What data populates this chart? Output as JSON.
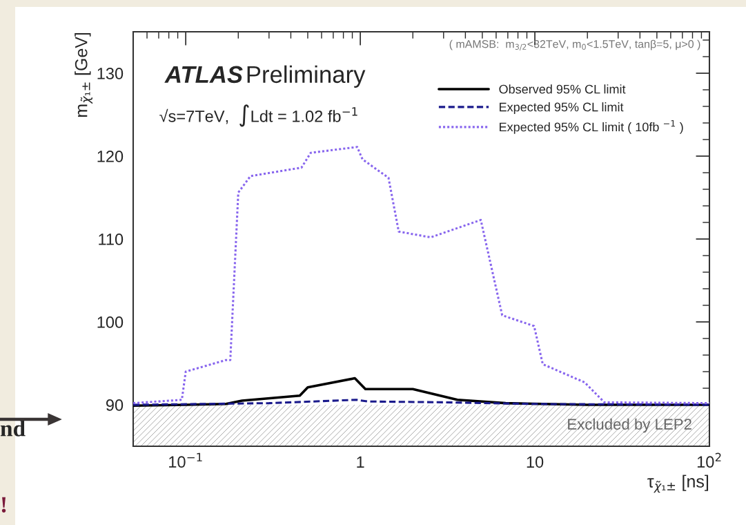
{
  "chart_data": {
    "type": "line",
    "xlabel": "τ$_{χ̃₁±}$ [ns]",
    "ylabel": "m$_{χ̃₁±}$ [GeV]",
    "log": "x",
    "xlim": [
      0.05,
      100
    ],
    "xticks": [
      {
        "value": 0.1,
        "label": "10$^{−1}$"
      },
      1,
      10,
      {
        "value": 100,
        "label": "10$^{2}$"
      }
    ],
    "ylim": [
      85,
      135
    ],
    "yticks": [
      90,
      100,
      110,
      120,
      130
    ],
    "grid": false,
    "legend": "top right",
    "series": [
      {
        "name": "Observed 95% CL limit",
        "color": "#000000",
        "line_style": "solid",
        "x": [
          0.05,
          0.1,
          0.17,
          0.21,
          0.45,
          0.5,
          0.93,
          1.07,
          2.0,
          3.6,
          6.8,
          19.8,
          100
        ],
        "values": [
          89.9,
          90.0,
          90.1,
          90.5,
          91.1,
          92.1,
          93.2,
          91.9,
          91.9,
          90.6,
          90.2,
          90.0,
          90.0
        ]
      },
      {
        "name": "Expected 95% CL limit",
        "color": "#1a1a8c",
        "line_style": "dashed",
        "x": [
          0.05,
          0.3,
          0.95,
          1.1,
          3,
          10,
          100
        ],
        "values": [
          90.0,
          90.2,
          90.6,
          90.4,
          90.3,
          90.1,
          90.0
        ]
      },
      {
        "name": "Expected 95% CL limit ( 10fb $^{−1}$ )",
        "color": "#8866ee",
        "line_style": "dotted",
        "x": [
          0.05,
          0.095,
          0.1,
          0.17,
          0.18,
          0.2,
          0.235,
          0.46,
          0.52,
          0.96,
          1.03,
          1.45,
          1.66,
          2.53,
          4.9,
          6.5,
          9.9,
          11.1,
          19.3,
          25,
          100
        ],
        "values": [
          90.2,
          90.6,
          94.0,
          95.4,
          95.4,
          115.6,
          117.6,
          118.6,
          120.4,
          121.1,
          119.6,
          117.4,
          110.9,
          110.2,
          112.3,
          100.8,
          99.5,
          94.9,
          92.7,
          90.3,
          90.2
        ]
      }
    ],
    "bands": [
      {
        "axis": "y",
        "from": 85,
        "to": 90,
        "label": "Excluded by LEP2",
        "color": "#999999"
      }
    ],
    "annotations": [
      "ATLAS",
      "Preliminary",
      "√s=7TeV,  ∫Ldt = 1.02 fb$^{−1}$",
      "( mAMSB:  m$_{3/2}$<32TeV, m$_{0}$<1.5TeV, tanβ=5, μ>0 )",
      "nd",
      "!"
    ]
  }
}
